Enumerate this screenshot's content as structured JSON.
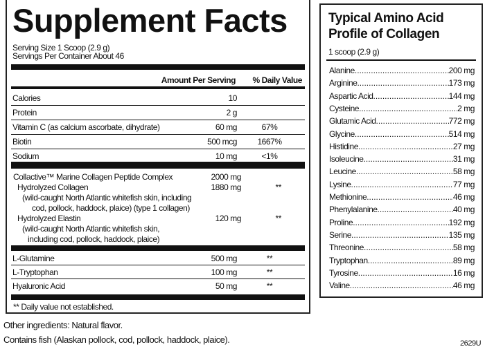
{
  "supplement_facts": {
    "title": "Supplement Facts",
    "serving_size": "Serving Size 1 Scoop (2.9 g)",
    "servings_per_container": "Servings Per Container About 46",
    "header_amount": "Amount Per Serving",
    "header_dv": "% Daily Value",
    "nutrients": [
      {
        "name": "Calories",
        "amount": "10",
        "dv": ""
      },
      {
        "name": "Protein",
        "amount": "2 g",
        "dv": ""
      },
      {
        "name": "Vitamin C (as calcium ascorbate, dihydrate)",
        "amount": "60 mg",
        "dv": "67%"
      },
      {
        "name": "Biotin",
        "amount": "500 mcg",
        "dv": "1667%"
      },
      {
        "name": "Sodium",
        "amount": "10 mg",
        "dv": "<1%"
      }
    ],
    "complex": {
      "name": "Collactive™ Marine Collagen Peptide Complex",
      "amount": "2000 mg",
      "collagen_name": "Hydrolyzed Collagen",
      "collagen_amount": "1880 mg",
      "collagen_dv": "**",
      "collagen_desc_1": "(wild-caught North Atlantic whitefish skin, including",
      "collagen_desc_2": "cod, pollock, haddock, plaice) (type 1 collagen)",
      "elastin_name": "Hydrolyzed Elastin",
      "elastin_amount": "120 mg",
      "elastin_dv": "**",
      "elastin_desc_1": "(wild-caught North Atlantic whitefish skin,",
      "elastin_desc_2": "including cod, pollock, haddock, plaice)"
    },
    "others": [
      {
        "name": "L-Glutamine",
        "amount": "500 mg",
        "dv": "**"
      },
      {
        "name": "L-Tryptophan",
        "amount": "100 mg",
        "dv": "**"
      },
      {
        "name": "Hyaluronic Acid",
        "amount": "50 mg",
        "dv": "**"
      }
    ],
    "footnote": "** Daily value not established."
  },
  "other_ingredients": "Other ingredients: Natural flavor.",
  "allergen": "Contains fish (Alaskan pollock, cod, pollock, haddock, plaice).",
  "code": "2629U",
  "amino_profile": {
    "title_1": "Typical Amino Acid",
    "title_2": "Profile of Collagen",
    "serving": "1 scoop (2.9 g)",
    "items": [
      {
        "name": "Alanine",
        "value": "200 mg"
      },
      {
        "name": "Arginine",
        "value": "173 mg"
      },
      {
        "name": "Aspartic Acid",
        "value": "144 mg"
      },
      {
        "name": "Cysteine",
        "value": "2 mg"
      },
      {
        "name": "Glutamic Acid",
        "value": "772 mg"
      },
      {
        "name": "Glycine",
        "value": "514 mg"
      },
      {
        "name": "Histidine",
        "value": "27 mg"
      },
      {
        "name": "Isoleucine",
        "value": "31 mg"
      },
      {
        "name": "Leucine",
        "value": "58 mg"
      },
      {
        "name": "Lysine",
        "value": "77 mg"
      },
      {
        "name": "Methionine",
        "value": "46 mg"
      },
      {
        "name": "Phenylalanine",
        "value": "40 mg"
      },
      {
        "name": "Proline",
        "value": "192 mg"
      },
      {
        "name": "Serine",
        "value": "135 mg"
      },
      {
        "name": "Threonine",
        "value": "58 mg"
      },
      {
        "name": "Tryptophan",
        "value": "89 mg"
      },
      {
        "name": "Tyrosine",
        "value": "16 mg"
      },
      {
        "name": "Valine",
        "value": "46 mg"
      }
    ]
  }
}
